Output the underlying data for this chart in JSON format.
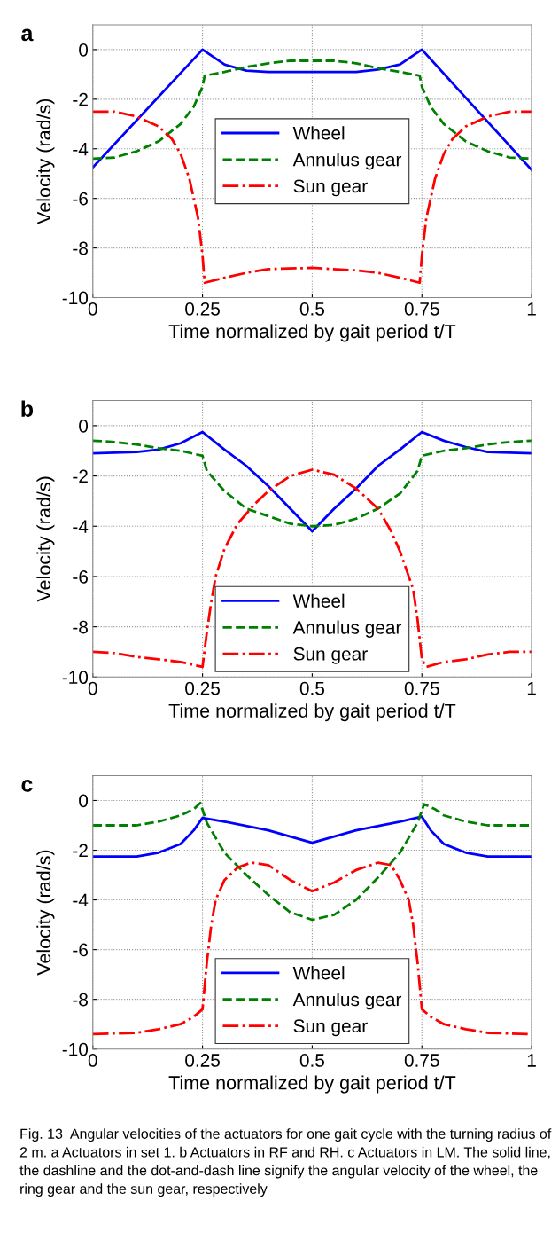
{
  "chart_data": [
    {
      "type": "line",
      "title": "a",
      "xlabel": "Time normalized by gait period t/T",
      "ylabel": "Velocity (rad/s)",
      "xlim": [
        0,
        1
      ],
      "ylim": [
        -10,
        1
      ],
      "xticks": [
        0,
        0.25,
        0.5,
        0.75,
        1
      ],
      "yticks": [
        -10,
        -8,
        -6,
        -4,
        -2,
        0
      ],
      "grid": true,
      "legend": "center",
      "series": [
        {
          "name": "Wheel",
          "color": "#0000ff",
          "line_style": "solid",
          "x": [
            0,
            0.25,
            0.3,
            0.35,
            0.4,
            0.6,
            0.65,
            0.7,
            0.75,
            1
          ],
          "values": [
            -4.75,
            0,
            -0.6,
            -0.85,
            -0.9,
            -0.9,
            -0.8,
            -0.6,
            0,
            -4.85
          ]
        },
        {
          "name": "Annulus gear",
          "color": "#008000",
          "line_style": "dashed",
          "x": [
            0,
            0.05,
            0.1,
            0.15,
            0.2,
            0.23,
            0.25,
            0.255,
            0.3,
            0.35,
            0.4,
            0.45,
            0.5,
            0.55,
            0.6,
            0.65,
            0.7,
            0.745,
            0.75,
            0.77,
            0.8,
            0.85,
            0.9,
            0.95,
            1
          ],
          "values": [
            -4.4,
            -4.35,
            -4.1,
            -3.7,
            -3.0,
            -2.3,
            -1.5,
            -1.05,
            -0.9,
            -0.7,
            -0.55,
            -0.45,
            -0.45,
            -0.45,
            -0.55,
            -0.75,
            -0.9,
            -1.05,
            -1.5,
            -2.3,
            -3.0,
            -3.7,
            -4.1,
            -4.35,
            -4.4
          ]
        },
        {
          "name": "Sun gear",
          "color": "#ff0000",
          "line_style": "dashdot",
          "x": [
            0,
            0.05,
            0.1,
            0.15,
            0.18,
            0.2,
            0.22,
            0.24,
            0.25,
            0.255,
            0.3,
            0.35,
            0.4,
            0.5,
            0.6,
            0.65,
            0.7,
            0.745,
            0.75,
            0.76,
            0.78,
            0.8,
            0.82,
            0.85,
            0.9,
            0.95,
            1
          ],
          "values": [
            -2.5,
            -2.5,
            -2.7,
            -3.1,
            -3.6,
            -4.2,
            -5.2,
            -6.8,
            -8.3,
            -9.4,
            -9.2,
            -9.0,
            -8.85,
            -8.8,
            -8.9,
            -9.0,
            -9.2,
            -9.4,
            -8.3,
            -6.8,
            -5.2,
            -4.2,
            -3.6,
            -3.1,
            -2.7,
            -2.5,
            -2.5
          ]
        }
      ]
    },
    {
      "type": "line",
      "title": "b",
      "xlabel": "Time normalized by gait period t/T",
      "ylabel": "Velocity (rad/s)",
      "xlim": [
        0,
        1
      ],
      "ylim": [
        -10,
        1
      ],
      "xticks": [
        0,
        0.25,
        0.5,
        0.75,
        1
      ],
      "yticks": [
        -10,
        -8,
        -6,
        -4,
        -2,
        0
      ],
      "grid": true,
      "legend": "bottom",
      "series": [
        {
          "name": "Wheel",
          "color": "#0000ff",
          "line_style": "solid",
          "x": [
            0,
            0.1,
            0.15,
            0.2,
            0.25,
            0.3,
            0.35,
            0.4,
            0.45,
            0.5,
            0.55,
            0.6,
            0.65,
            0.7,
            0.75,
            0.8,
            0.85,
            0.9,
            1
          ],
          "values": [
            -1.1,
            -1.05,
            -0.95,
            -0.7,
            -0.25,
            -0.95,
            -1.6,
            -2.4,
            -3.3,
            -4.2,
            -3.3,
            -2.5,
            -1.6,
            -0.95,
            -0.25,
            -0.6,
            -0.85,
            -1.05,
            -1.1
          ]
        },
        {
          "name": "Annulus gear",
          "color": "#008000",
          "line_style": "dashed",
          "x": [
            0,
            0.05,
            0.1,
            0.15,
            0.2,
            0.25,
            0.26,
            0.3,
            0.35,
            0.4,
            0.45,
            0.5,
            0.55,
            0.6,
            0.65,
            0.7,
            0.74,
            0.75,
            0.8,
            0.85,
            0.9,
            0.95,
            1
          ],
          "values": [
            -0.6,
            -0.65,
            -0.75,
            -0.9,
            -1.0,
            -1.2,
            -1.8,
            -2.6,
            -3.3,
            -3.6,
            -3.9,
            -4.0,
            -3.95,
            -3.7,
            -3.3,
            -2.7,
            -1.8,
            -1.2,
            -1.0,
            -0.9,
            -0.75,
            -0.65,
            -0.6
          ]
        },
        {
          "name": "Sun gear",
          "color": "#ff0000",
          "line_style": "dashdot",
          "x": [
            0,
            0.05,
            0.1,
            0.15,
            0.2,
            0.25,
            0.26,
            0.27,
            0.28,
            0.3,
            0.33,
            0.37,
            0.4,
            0.45,
            0.5,
            0.55,
            0.6,
            0.65,
            0.68,
            0.7,
            0.73,
            0.74,
            0.75,
            0.76,
            0.8,
            0.85,
            0.9,
            0.95,
            1
          ],
          "values": [
            -9.0,
            -9.05,
            -9.2,
            -9.3,
            -9.4,
            -9.6,
            -8.2,
            -7.0,
            -6.0,
            -4.9,
            -3.9,
            -3.1,
            -2.6,
            -2.0,
            -1.75,
            -1.95,
            -2.5,
            -3.3,
            -4.2,
            -5.0,
            -6.5,
            -7.7,
            -9.3,
            -9.6,
            -9.4,
            -9.3,
            -9.1,
            -9.0,
            -9.0
          ]
        }
      ]
    },
    {
      "type": "line",
      "title": "c",
      "xlabel": "Time normalized by gait period t/T",
      "ylabel": "Velocity (rad/s)",
      "xlim": [
        0,
        1
      ],
      "ylim": [
        -10,
        1
      ],
      "xticks": [
        0,
        0.25,
        0.5,
        0.75,
        1
      ],
      "yticks": [
        -10,
        -8,
        -6,
        -4,
        -2,
        0
      ],
      "grid": true,
      "legend": "bottom",
      "annotations": [
        "Fig. 13  Angular velocities of the actuators for one gait cycle with the turning radius of 2 m. a Actuators in set 1. b Actuators in RF and RH. c Actuators in LM. The solid line, the dashline and the dot-and-dash line signify the angular velocity of the wheel, the ring gear and the sun gear, respectively"
      ],
      "series": [
        {
          "name": "Wheel",
          "color": "#0000ff",
          "line_style": "solid",
          "x": [
            0,
            0.1,
            0.15,
            0.2,
            0.23,
            0.25,
            0.3,
            0.4,
            0.5,
            0.6,
            0.7,
            0.75,
            0.77,
            0.8,
            0.85,
            0.9,
            1
          ],
          "values": [
            -2.25,
            -2.25,
            -2.1,
            -1.75,
            -1.2,
            -0.7,
            -0.85,
            -1.2,
            -1.7,
            -1.2,
            -0.85,
            -0.65,
            -1.2,
            -1.75,
            -2.1,
            -2.25,
            -2.25
          ]
        },
        {
          "name": "Annulus gear",
          "color": "#008000",
          "line_style": "dashed",
          "x": [
            0,
            0.1,
            0.15,
            0.2,
            0.23,
            0.245,
            0.26,
            0.3,
            0.35,
            0.4,
            0.45,
            0.5,
            0.55,
            0.6,
            0.65,
            0.7,
            0.74,
            0.755,
            0.78,
            0.8,
            0.85,
            0.9,
            1
          ],
          "values": [
            -1.0,
            -1.0,
            -0.85,
            -0.6,
            -0.35,
            -0.1,
            -0.9,
            -2.1,
            -3.0,
            -3.8,
            -4.5,
            -4.8,
            -4.6,
            -4.0,
            -3.1,
            -2.1,
            -0.9,
            -0.15,
            -0.35,
            -0.6,
            -0.85,
            -1.0,
            -1.0
          ]
        },
        {
          "name": "Sun gear",
          "color": "#ff0000",
          "line_style": "dashdot",
          "x": [
            0,
            0.1,
            0.15,
            0.2,
            0.23,
            0.25,
            0.26,
            0.27,
            0.28,
            0.3,
            0.33,
            0.36,
            0.4,
            0.45,
            0.5,
            0.55,
            0.6,
            0.65,
            0.68,
            0.7,
            0.72,
            0.73,
            0.74,
            0.75,
            0.77,
            0.8,
            0.85,
            0.9,
            1
          ],
          "values": [
            -9.4,
            -9.35,
            -9.2,
            -9.0,
            -8.7,
            -8.4,
            -6.5,
            -5.0,
            -4.0,
            -3.2,
            -2.7,
            -2.5,
            -2.6,
            -3.2,
            -3.65,
            -3.3,
            -2.8,
            -2.5,
            -2.6,
            -3.2,
            -4.0,
            -5.0,
            -6.5,
            -8.4,
            -8.7,
            -9.0,
            -9.2,
            -9.35,
            -9.4
          ]
        }
      ]
    }
  ]
}
